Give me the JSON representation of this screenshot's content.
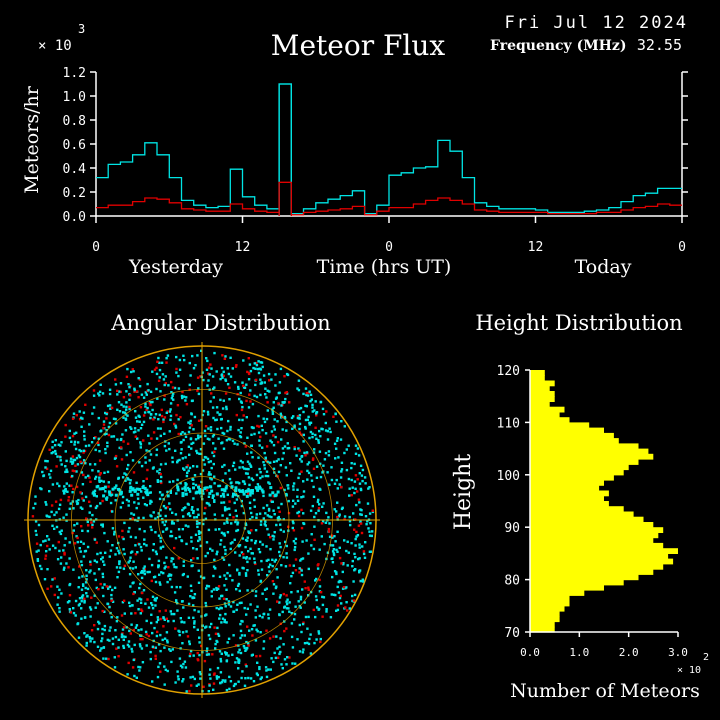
{
  "header": {
    "date": "Fri Jul 12 2024",
    "frequency_label": "Frequency (MHz)",
    "frequency_value": "32.55",
    "exponent_prefix": "× 10",
    "exponent_power": "3"
  },
  "colors": {
    "background": "#000000",
    "foreground": "#ffffff",
    "series_total": "#00e5e5",
    "series_subset": "#e00000",
    "angular_ring": "#e0a000",
    "histogram": "#ffff00"
  },
  "chart_data": [
    {
      "type": "line",
      "title": "Meteor Flux",
      "ylabel": "Meteors/hr",
      "xlabel": "Time (hrs UT)",
      "x_section_labels": [
        "Yesterday",
        "Today"
      ],
      "y_scale_note": "× 10^3",
      "x_ticks": [
        "0",
        "12",
        "0",
        "12",
        "0"
      ],
      "y_ticks": [
        "0.0",
        "0.2",
        "0.4",
        "0.6",
        "0.8",
        "1.0",
        "1.2"
      ],
      "ylim": [
        0,
        1.2
      ],
      "x_unit": "hour index (48 bins)",
      "series": [
        {
          "color": "#00e5e5",
          "values": [
            0.32,
            0.43,
            0.45,
            0.51,
            0.61,
            0.51,
            0.32,
            0.13,
            0.09,
            0.07,
            0.08,
            0.39,
            0.16,
            0.09,
            0.06,
            1.1,
            0.02,
            0.06,
            0.11,
            0.14,
            0.17,
            0.21,
            0.02,
            0.09,
            0.34,
            0.36,
            0.4,
            0.41,
            0.63,
            0.54,
            0.32,
            0.11,
            0.08,
            0.06,
            0.06,
            0.06,
            0.05,
            0.03,
            0.03,
            0.03,
            0.04,
            0.05,
            0.07,
            0.12,
            0.17,
            0.19,
            0.23,
            0.23
          ]
        },
        {
          "color": "#e00000",
          "values": [
            0.07,
            0.09,
            0.09,
            0.12,
            0.15,
            0.14,
            0.11,
            0.06,
            0.05,
            0.04,
            0.04,
            0.1,
            0.06,
            0.04,
            0.03,
            0.28,
            0.01,
            0.03,
            0.04,
            0.05,
            0.06,
            0.08,
            0.01,
            0.04,
            0.07,
            0.07,
            0.1,
            0.13,
            0.15,
            0.13,
            0.1,
            0.05,
            0.04,
            0.03,
            0.03,
            0.03,
            0.03,
            0.02,
            0.02,
            0.02,
            0.02,
            0.03,
            0.03,
            0.05,
            0.07,
            0.08,
            0.1,
            0.09
          ]
        }
      ]
    },
    {
      "type": "scatter",
      "title": "Angular Distribution",
      "note": "polar sky plot of meteor echo positions"
    },
    {
      "type": "bar",
      "orientation": "horizontal",
      "title": "Height Distribution",
      "ylabel": "Height",
      "xlabel": "Number of Meteors",
      "x_scale_note": "× 10^2",
      "x_ticks": [
        "0.0",
        "1.0",
        "2.0",
        "3.0"
      ],
      "xlim": [
        0,
        3.0
      ],
      "y_ticks": [
        "70",
        "80",
        "90",
        "100",
        "110",
        "120"
      ],
      "ylim": [
        70,
        120
      ],
      "heights": [
        71,
        72,
        73,
        74,
        75,
        76,
        77,
        78,
        79,
        80,
        81,
        82,
        83,
        84,
        85,
        86,
        87,
        88,
        89,
        90,
        91,
        92,
        93,
        94,
        95,
        96,
        97,
        98,
        99,
        100,
        101,
        102,
        103,
        104,
        105,
        106,
        107,
        108,
        109,
        110,
        111,
        112,
        113,
        114,
        115,
        116,
        117,
        118,
        119,
        120
      ],
      "values": [
        0.5,
        0.5,
        0.6,
        0.6,
        0.7,
        0.8,
        0.8,
        1.1,
        1.5,
        1.9,
        2.2,
        2.5,
        2.7,
        2.9,
        2.8,
        3.0,
        2.7,
        2.5,
        2.6,
        2.7,
        2.5,
        2.3,
        2.1,
        1.9,
        1.6,
        1.5,
        1.6,
        1.4,
        1.5,
        1.7,
        1.9,
        2.0,
        2.2,
        2.5,
        2.4,
        2.2,
        1.8,
        1.7,
        1.5,
        1.2,
        0.8,
        0.6,
        0.7,
        0.4,
        0.5,
        0.5,
        0.4,
        0.5,
        0.3,
        0.3
      ]
    }
  ]
}
